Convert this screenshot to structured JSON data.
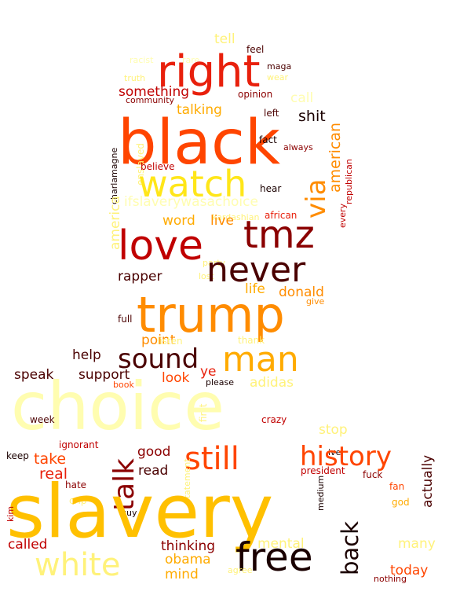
{
  "palette": {
    "light_yellow": "#fffdb0",
    "pale_yellow": "#fff27a",
    "yellow": "#ffe619",
    "gold": "#ffc000",
    "amber": "#ffab00",
    "orange": "#ff8c00",
    "red_orange": "#ff4500",
    "red": "#e8200c",
    "crimson": "#c00000",
    "dark_red": "#8b0000",
    "maroon": "#4a0000",
    "near_black": "#1a0000"
  },
  "words": [
    {
      "text": "tell",
      "color": "pale_yellow"
    },
    {
      "text": "feel",
      "color": "maroon"
    },
    {
      "text": "racist",
      "color": "light_yellow"
    },
    {
      "text": "rare",
      "color": "light_yellow"
    },
    {
      "text": "right",
      "color": "red"
    },
    {
      "text": "maga",
      "color": "maroon"
    },
    {
      "text": "truth",
      "color": "pale_yellow"
    },
    {
      "text": "wear",
      "color": "pale_yellow"
    },
    {
      "text": "something",
      "color": "crimson"
    },
    {
      "text": "opinion",
      "color": "dark_red"
    },
    {
      "text": "community",
      "color": "dark_red"
    },
    {
      "text": "call",
      "color": "light_yellow"
    },
    {
      "text": "talking",
      "color": "amber"
    },
    {
      "text": "left",
      "color": "maroon"
    },
    {
      "text": "shit",
      "color": "near_black"
    },
    {
      "text": "black",
      "color": "red_orange"
    },
    {
      "text": "charlamagne",
      "color": "near_black"
    },
    {
      "text": "enslaved",
      "color": "pale_yellow"
    },
    {
      "text": "fact",
      "color": "near_black"
    },
    {
      "text": "american",
      "color": "orange"
    },
    {
      "text": "always",
      "color": "dark_red"
    },
    {
      "text": "believe",
      "color": "crimson"
    },
    {
      "text": "watch",
      "color": "yellow"
    },
    {
      "text": "republican",
      "color": "crimson"
    },
    {
      "text": "every",
      "color": "crimson"
    },
    {
      "text": "hear",
      "color": "near_black"
    },
    {
      "text": "via",
      "color": "orange"
    },
    {
      "text": "ifslaverywasachoice",
      "color": "light_yellow"
    },
    {
      "text": "america",
      "color": "pale_yellow"
    },
    {
      "text": "african",
      "color": "red"
    },
    {
      "text": "kardashian",
      "color": "pale_yellow"
    },
    {
      "text": "word",
      "color": "amber"
    },
    {
      "text": "live",
      "color": "orange"
    },
    {
      "text": "love",
      "color": "crimson"
    },
    {
      "text": "tmz",
      "color": "dark_red"
    },
    {
      "text": "party",
      "color": "pale_yellow"
    },
    {
      "text": "lost",
      "color": "pale_yellow"
    },
    {
      "text": "never",
      "color": "maroon"
    },
    {
      "text": "rapper",
      "color": "maroon"
    },
    {
      "text": "life",
      "color": "amber"
    },
    {
      "text": "donald",
      "color": "orange"
    },
    {
      "text": "give",
      "color": "orange"
    },
    {
      "text": "trump",
      "color": "orange"
    },
    {
      "text": "full",
      "color": "maroon"
    },
    {
      "text": "point",
      "color": "orange"
    },
    {
      "text": "listen",
      "color": "pale_yellow"
    },
    {
      "text": "thank",
      "color": "pale_yellow"
    },
    {
      "text": "help",
      "color": "maroon"
    },
    {
      "text": "sound",
      "color": "maroon"
    },
    {
      "text": "man",
      "color": "amber"
    },
    {
      "text": "speak",
      "color": "maroon"
    },
    {
      "text": "support",
      "color": "maroon"
    },
    {
      "text": "look",
      "color": "red_orange"
    },
    {
      "text": "ye",
      "color": "red"
    },
    {
      "text": "adidas",
      "color": "pale_yellow"
    },
    {
      "text": "book",
      "color": "red_orange"
    },
    {
      "text": "please",
      "color": "near_black"
    },
    {
      "text": "first",
      "color": "pale_yellow"
    },
    {
      "text": "choice",
      "color": "light_yellow"
    },
    {
      "text": "week",
      "color": "maroon"
    },
    {
      "text": "crazy",
      "color": "crimson"
    },
    {
      "text": "stop",
      "color": "pale_yellow"
    },
    {
      "text": "ignorant",
      "color": "crimson"
    },
    {
      "text": "ive",
      "color": "near_black"
    },
    {
      "text": "keep",
      "color": "near_black"
    },
    {
      "text": "take",
      "color": "red_orange"
    },
    {
      "text": "good",
      "color": "dark_red"
    },
    {
      "text": "still",
      "color": "red_orange"
    },
    {
      "text": "history",
      "color": "red_orange"
    },
    {
      "text": "real",
      "color": "red"
    },
    {
      "text": "talk",
      "color": "dark_red"
    },
    {
      "text": "read",
      "color": "maroon"
    },
    {
      "text": "president",
      "color": "crimson"
    },
    {
      "text": "fuck",
      "color": "dark_red"
    },
    {
      "text": "actually",
      "color": "maroon"
    },
    {
      "text": "hate",
      "color": "dark_red"
    },
    {
      "text": "fan",
      "color": "red_orange"
    },
    {
      "text": "crip",
      "color": "pale_yellow"
    },
    {
      "text": "statement",
      "color": "pale_yellow"
    },
    {
      "text": "guy",
      "color": "near_black"
    },
    {
      "text": "medium",
      "color": "near_black"
    },
    {
      "text": "god",
      "color": "amber"
    },
    {
      "text": "slavery",
      "color": "gold"
    },
    {
      "text": "kim",
      "color": "crimson"
    },
    {
      "text": "called",
      "color": "crimson"
    },
    {
      "text": "thinking",
      "color": "dark_red"
    },
    {
      "text": "mental",
      "color": "pale_yellow"
    },
    {
      "text": "back",
      "color": "near_black"
    },
    {
      "text": "many",
      "color": "pale_yellow"
    },
    {
      "text": "obama",
      "color": "amber"
    },
    {
      "text": "white",
      "color": "pale_yellow"
    },
    {
      "text": "free",
      "color": "near_black"
    },
    {
      "text": "mind",
      "color": "amber"
    },
    {
      "text": "agree",
      "color": "pale_yellow"
    },
    {
      "text": "today",
      "color": "red_orange"
    },
    {
      "text": "nothing",
      "color": "dark_red"
    }
  ]
}
